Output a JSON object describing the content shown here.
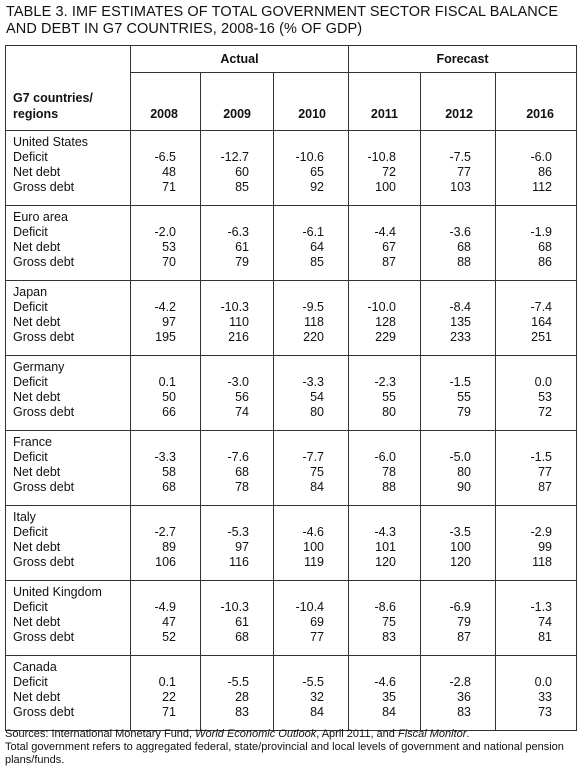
{
  "title_lines": [
    "TABLE 3. IMF ESTIMATES OF TOTAL GOVERNMENT SECTOR FISCAL BALANCE",
    "AND DEBT IN G7 COUNTRIES, 2008-16 (% OF GDP)"
  ],
  "table": {
    "row_header": "G7 countries/ regions",
    "column_groups": [
      {
        "label": "Actual",
        "span": 3
      },
      {
        "label": "Forecast",
        "span": 3
      }
    ],
    "columns": [
      "2008",
      "2009",
      "2010",
      "2011",
      "2012",
      "2016"
    ],
    "groups": [
      {
        "country": "United States",
        "rows": [
          {
            "label": "Deficit",
            "values": [
              "-6.5",
              "-12.7",
              "-10.6",
              "-10.8",
              "-7.5",
              "-6.0"
            ]
          },
          {
            "label": "Net debt",
            "values": [
              "48",
              "60",
              "65",
              "72",
              "77",
              "86"
            ]
          },
          {
            "label": "Gross debt",
            "values": [
              "71",
              "85",
              "92",
              "100",
              "103",
              "112"
            ]
          }
        ]
      },
      {
        "country": "Euro area",
        "rows": [
          {
            "label": "Deficit",
            "values": [
              "-2.0",
              "-6.3",
              "-6.1",
              "-4.4",
              "-3.6",
              "-1.9"
            ]
          },
          {
            "label": "Net debt",
            "values": [
              "53",
              "61",
              "64",
              "67",
              "68",
              "68"
            ]
          },
          {
            "label": "Gross debt",
            "values": [
              "70",
              "79",
              "85",
              "87",
              "88",
              "86"
            ]
          }
        ]
      },
      {
        "country": "Japan",
        "rows": [
          {
            "label": "Deficit",
            "values": [
              "-4.2",
              "-10.3",
              "-9.5",
              "-10.0",
              "-8.4",
              "-7.4"
            ]
          },
          {
            "label": "Net debt",
            "values": [
              "97",
              "110",
              "118",
              "128",
              "135",
              "164"
            ]
          },
          {
            "label": "Gross debt",
            "values": [
              "195",
              "216",
              "220",
              "229",
              "233",
              "251"
            ]
          }
        ]
      },
      {
        "country": "Germany",
        "rows": [
          {
            "label": "Deficit",
            "values": [
              "0.1",
              "-3.0",
              "-3.3",
              "-2.3",
              "-1.5",
              "0.0"
            ]
          },
          {
            "label": "Net debt",
            "values": [
              "50",
              "56",
              "54",
              "55",
              "55",
              "53"
            ]
          },
          {
            "label": "Gross debt",
            "values": [
              "66",
              "74",
              "80",
              "80",
              "79",
              "72"
            ]
          }
        ]
      },
      {
        "country": "France",
        "rows": [
          {
            "label": "Deficit",
            "values": [
              "-3.3",
              "-7.6",
              "-7.7",
              "-6.0",
              "-5.0",
              "-1.5"
            ]
          },
          {
            "label": "Net debt",
            "values": [
              "58",
              "68",
              "75",
              "78",
              "80",
              "77"
            ]
          },
          {
            "label": "Gross debt",
            "values": [
              "68",
              "78",
              "84",
              "88",
              "90",
              "87"
            ]
          }
        ]
      },
      {
        "country": "Italy",
        "rows": [
          {
            "label": "Deficit",
            "values": [
              "-2.7",
              "-5.3",
              "-4.6",
              "-4.3",
              "-3.5",
              "-2.9"
            ]
          },
          {
            "label": "Net debt",
            "values": [
              "89",
              "97",
              "100",
              "101",
              "100",
              "99"
            ]
          },
          {
            "label": "Gross debt",
            "values": [
              "106",
              "116",
              "119",
              "120",
              "120",
              "118"
            ]
          }
        ]
      },
      {
        "country": "United Kingdom",
        "rows": [
          {
            "label": "Deficit",
            "values": [
              "-4.9",
              "-10.3",
              "-10.4",
              "-8.6",
              "-6.9",
              "-1.3"
            ]
          },
          {
            "label": "Net debt",
            "values": [
              "47",
              "61",
              "69",
              "75",
              "79",
              "74"
            ]
          },
          {
            "label": "Gross debt",
            "values": [
              "52",
              "68",
              "77",
              "83",
              "87",
              "81"
            ]
          }
        ]
      },
      {
        "country": "Canada",
        "rows": [
          {
            "label": "Deficit",
            "values": [
              "0.1",
              "-5.5",
              "-5.5",
              "-4.6",
              "-2.8",
              "0.0"
            ]
          },
          {
            "label": "Net debt",
            "values": [
              "22",
              "28",
              "32",
              "35",
              "36",
              "33"
            ]
          },
          {
            "label": "Gross debt",
            "values": [
              "71",
              "83",
              "84",
              "84",
              "83",
              "73"
            ]
          }
        ]
      }
    ]
  },
  "notes": {
    "sources": [
      {
        "text": "Sources: International Monetary Fund, ",
        "italic": false
      },
      {
        "text": "World Economic Outlook",
        "italic": true
      },
      {
        "text": ", April 2011, and ",
        "italic": false
      },
      {
        "text": "Fiscal Monitor",
        "italic": true
      },
      {
        "text": ".",
        "italic": false
      }
    ],
    "note": "Total government refers to aggregated federal, state/provincial and local levels of government and national pension plans/funds."
  }
}
